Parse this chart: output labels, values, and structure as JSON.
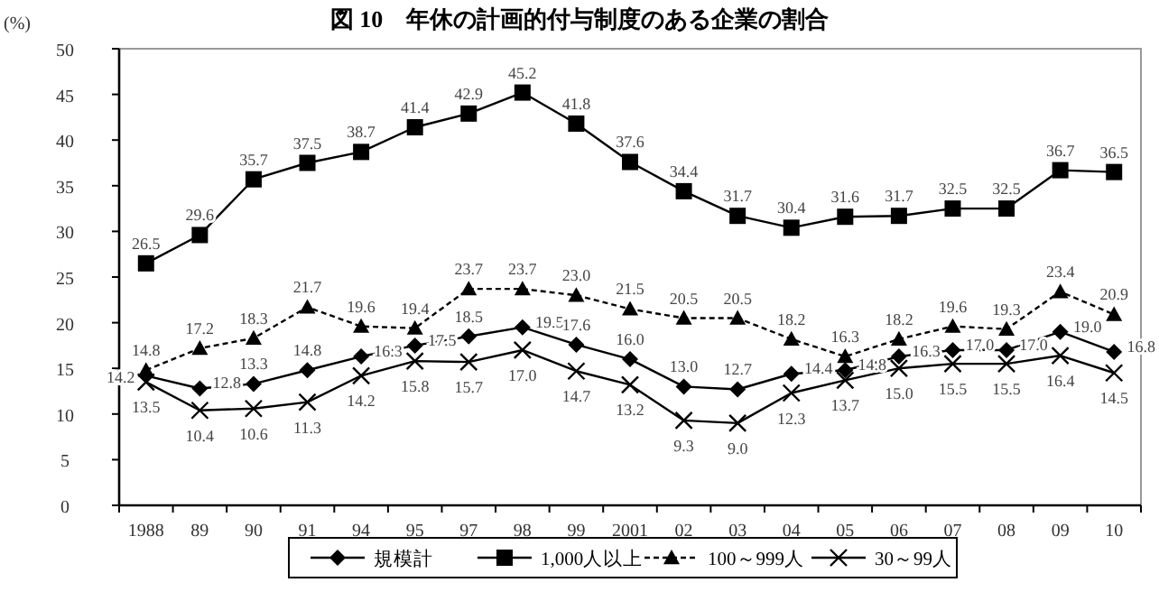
{
  "chart_data": {
    "type": "line",
    "title": "図 10　年休の計画的付与制度のある企業の割合",
    "ylabel": "(%)",
    "categories": [
      "1988",
      "89",
      "90",
      "91",
      "94",
      "95",
      "97",
      "98",
      "99",
      "2001",
      "02",
      "03",
      "04",
      "05",
      "06",
      "07",
      "08",
      "09",
      "10"
    ],
    "ylim": [
      0,
      50
    ],
    "yticks": [
      0,
      5,
      10,
      15,
      20,
      25,
      30,
      35,
      40,
      45,
      50
    ],
    "legend": "bottom",
    "grid": false,
    "series": [
      {
        "name": "規模計",
        "color": "#000000",
        "marker": "diamond",
        "line_style": "solid",
        "values": [
          14.2,
          12.8,
          13.3,
          14.8,
          16.3,
          17.5,
          18.5,
          19.5,
          17.6,
          16.0,
          13.0,
          12.7,
          14.4,
          14.8,
          16.3,
          17.0,
          17.0,
          19.0,
          16.8
        ],
        "value_labels": [
          "14.2",
          "12.8",
          "13.3",
          "14.8",
          "16.3",
          "17.5",
          "18.5",
          "19.5",
          "17.6",
          "16.0",
          "13.0",
          "12.7",
          "14.4",
          "14.8",
          "16.3",
          "17.0",
          "17.0",
          "19.0",
          "16.8"
        ]
      },
      {
        "name": "1,000人以上",
        "color": "#000000",
        "marker": "square",
        "line_style": "solid",
        "values": [
          26.5,
          29.6,
          35.7,
          37.5,
          38.7,
          41.4,
          42.9,
          45.2,
          41.8,
          37.6,
          34.4,
          31.7,
          30.4,
          31.6,
          31.7,
          32.5,
          32.5,
          36.7,
          36.5
        ],
        "value_labels": [
          "26.5",
          "29.6",
          "35.7",
          "37.5",
          "38.7",
          "41.4",
          "42.9",
          "45.2",
          "41.8",
          "37.6",
          "34.4",
          "31.7",
          "30.4",
          "31.6",
          "31.7",
          "32.5",
          "32.5",
          "36.7",
          "36.5"
        ]
      },
      {
        "name": "100～999人",
        "color": "#000000",
        "marker": "triangle",
        "line_style": "dashed",
        "values": [
          14.8,
          17.2,
          18.3,
          21.7,
          19.6,
          19.4,
          23.7,
          23.7,
          23.0,
          21.5,
          20.5,
          20.5,
          18.2,
          16.3,
          18.2,
          19.6,
          19.3,
          23.4,
          20.9
        ],
        "value_labels": [
          "14.8",
          "17.2",
          "18.3",
          "21.7",
          "19.6",
          "19.4",
          "23.7",
          "23.7",
          "23.0",
          "21.5",
          "20.5",
          "20.5",
          "18.2",
          "16.3",
          "18.2",
          "19.6",
          "19.3",
          "23.4",
          "20.9"
        ]
      },
      {
        "name": "30～99人",
        "color": "#000000",
        "marker": "cross",
        "line_style": "solid",
        "values": [
          13.5,
          10.4,
          10.6,
          11.3,
          14.2,
          15.8,
          15.7,
          17.0,
          14.7,
          13.2,
          9.3,
          9.0,
          12.3,
          13.7,
          15.0,
          15.5,
          15.5,
          16.4,
          14.5
        ],
        "value_labels": [
          "13.5",
          "10.4",
          "10.6",
          "11.3",
          "14.2",
          "15.8",
          "15.7",
          "17.0",
          "14.7",
          "13.2",
          "9.3",
          "9.0",
          "12.3",
          "13.7",
          "15.0",
          "15.5",
          "15.5",
          "16.4",
          "14.5"
        ]
      }
    ]
  }
}
